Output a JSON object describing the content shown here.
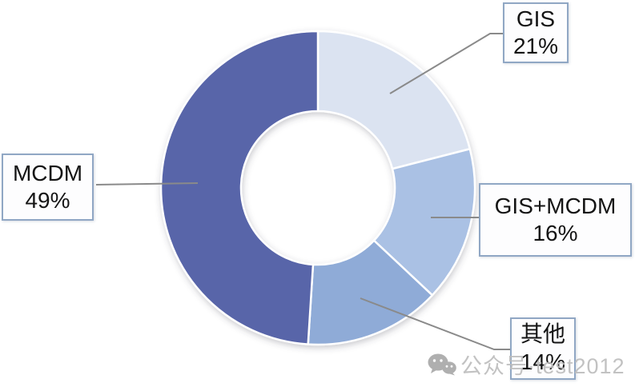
{
  "chart_data": {
    "type": "pie",
    "subtype": "donut",
    "title": "",
    "categories": [
      "GIS",
      "GIS+MCDM",
      "其他",
      "MCDM"
    ],
    "values": [
      21,
      16,
      14,
      49
    ],
    "unit": "%",
    "colors": [
      "#dbe3f1",
      "#aac1e4",
      "#8fabd7",
      "#5965a9"
    ],
    "start_angle_deg": 0,
    "direction": "clockwise",
    "inner_radius_ratio": 0.49,
    "slice_border_color": "#ffffff",
    "leader_line_color": "#8a8a8a",
    "legend_position": "callout-boxes"
  },
  "callouts": [
    {
      "title": "GIS",
      "percent": "21%"
    },
    {
      "title": "GIS+MCDM",
      "percent": "16%"
    },
    {
      "title": "其他",
      "percent": "14%"
    },
    {
      "title": "MCDM",
      "percent": "49%"
    }
  ],
  "watermark": {
    "text": "公众号·test2012",
    "icon": "wechat-icon"
  }
}
